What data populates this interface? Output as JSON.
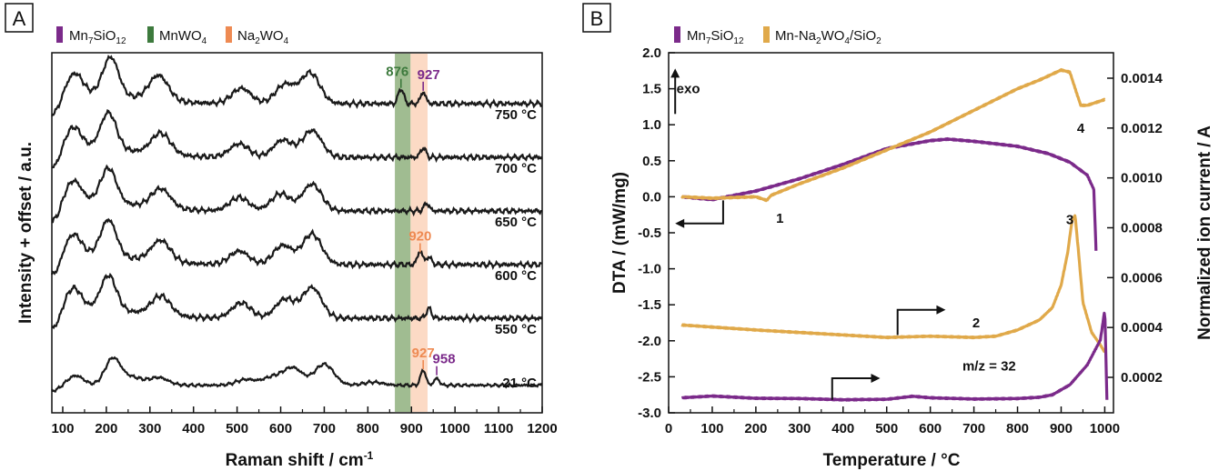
{
  "chart_data": [
    {
      "panel": "A",
      "type": "line",
      "xlabel": "Raman shift / cm⁻¹",
      "ylabel": "Intensity + offset / a.u.",
      "xlim": [
        75,
        1200
      ],
      "xticks": [
        100,
        200,
        300,
        400,
        500,
        600,
        700,
        800,
        900,
        1000,
        1100,
        1200
      ],
      "legend": [
        {
          "label": "Mn7SiO12",
          "color": "#7b2a8a"
        },
        {
          "label": "MnWO4",
          "color": "#3d7a3d"
        },
        {
          "label": "Na2WO4",
          "color": "#ee8a52"
        }
      ],
      "bands": [
        {
          "label": "MnWO4",
          "x0": 862,
          "x1": 898,
          "color": "#8fb07e"
        },
        {
          "label": "Na2WO4",
          "x0": 898,
          "x1": 937,
          "color": "#fbd4bb"
        }
      ],
      "series": [
        {
          "name": "750 °C",
          "offset": 5,
          "peaks": [
            [
              128,
              0.55
            ],
            [
              210,
              1.0
            ],
            [
              320,
              0.65
            ],
            [
              510,
              0.4
            ],
            [
              610,
              0.5
            ],
            [
              668,
              0.8
            ],
            [
              876,
              0.4
            ],
            [
              927,
              0.3
            ]
          ]
        },
        {
          "name": "700 °C",
          "offset": 4,
          "peaks": [
            [
              125,
              0.55
            ],
            [
              205,
              0.95
            ],
            [
              325,
              0.55
            ],
            [
              505,
              0.35
            ],
            [
              605,
              0.45
            ],
            [
              672,
              0.7
            ],
            [
              927,
              0.25
            ]
          ]
        },
        {
          "name": "650 °C",
          "offset": 3,
          "peaks": [
            [
              125,
              0.55
            ],
            [
              205,
              0.9
            ],
            [
              325,
              0.5
            ],
            [
              505,
              0.35
            ],
            [
              600,
              0.45
            ],
            [
              672,
              0.7
            ],
            [
              935,
              0.2
            ]
          ]
        },
        {
          "name": "600 °C",
          "offset": 2,
          "peaks": [
            [
              125,
              0.55
            ],
            [
              205,
              0.95
            ],
            [
              325,
              0.55
            ],
            [
              505,
              0.35
            ],
            [
              605,
              0.5
            ],
            [
              672,
              0.8
            ],
            [
              920,
              0.35
            ],
            [
              940,
              0.2
            ]
          ]
        },
        {
          "name": "550 °C",
          "offset": 1,
          "peaks": [
            [
              125,
              0.55
            ],
            [
              205,
              0.9
            ],
            [
              325,
              0.5
            ],
            [
              510,
              0.4
            ],
            [
              610,
              0.5
            ],
            [
              672,
              0.8
            ],
            [
              940,
              0.25
            ]
          ]
        },
        {
          "name": "21 °C",
          "offset": 0,
          "peaks": [
            [
              130,
              0.25
            ],
            [
              215,
              0.7
            ],
            [
              260,
              0.2
            ],
            [
              320,
              0.2
            ],
            [
              520,
              0.15
            ],
            [
              580,
              0.2
            ],
            [
              628,
              0.45
            ],
            [
              700,
              0.55
            ],
            [
              812,
              0.08
            ],
            [
              927,
              0.4
            ],
            [
              958,
              0.18
            ]
          ]
        }
      ],
      "annotations": [
        {
          "text": "876",
          "x": 876,
          "series": "750 °C",
          "color": "#3d7a3d"
        },
        {
          "text": "927",
          "x": 927,
          "series": "750 °C",
          "color": "#7b2a8a"
        },
        {
          "text": "920",
          "x": 920,
          "series": "600 °C",
          "color": "#ee8a52"
        },
        {
          "text": "927",
          "x": 927,
          "series": "21 °C",
          "color": "#ee8a52"
        },
        {
          "text": "958",
          "x": 958,
          "series": "21 °C",
          "color": "#7b2a8a"
        }
      ]
    },
    {
      "panel": "B",
      "type": "line",
      "xlabel": "Temperature / °C",
      "ylabel": "DTA / (mW/mg)",
      "y2label": "Normalized ion current / A",
      "xlim": [
        0,
        1020
      ],
      "ylim": [
        -3.0,
        2.0
      ],
      "y2lim": [
        0.0001,
        0.00145
      ],
      "xticks": [
        0,
        100,
        200,
        300,
        400,
        500,
        600,
        700,
        800,
        900,
        1000
      ],
      "yticks": [
        "2.0",
        "1.5",
        "1.0",
        "0.5",
        "0.0",
        "-0.5",
        "-1.0",
        "-1.5",
        "-2.0",
        "-2.5",
        "-3.0"
      ],
      "y2ticks": [
        "0.0014",
        "0.0012",
        "0.0010",
        "0.0008",
        "0.0006",
        "0.0004",
        "0.0002"
      ],
      "legend": [
        {
          "label": "Mn7SiO12",
          "color": "#7b2a8a"
        },
        {
          "label": "Mn-Na2WO4/SiO2",
          "color": "#e0a94a"
        }
      ],
      "series": [
        {
          "name": "Mn7SiO12 DTA",
          "axis": "left",
          "color": "#7b2a8a",
          "x": [
            30,
            100,
            200,
            300,
            400,
            500,
            600,
            640,
            700,
            800,
            870,
            920,
            960,
            975,
            980
          ],
          "y": [
            0.0,
            -0.04,
            0.08,
            0.25,
            0.45,
            0.67,
            0.78,
            0.8,
            0.77,
            0.7,
            0.6,
            0.48,
            0.3,
            0.1,
            -0.75
          ]
        },
        {
          "name": "Mn-Na2WO4/SiO2 DTA",
          "axis": "left",
          "color": "#e0a94a",
          "x": [
            30,
            100,
            200,
            225,
            235,
            300,
            400,
            500,
            600,
            700,
            800,
            850,
            900,
            920,
            935,
            945,
            960,
            1000
          ],
          "y": [
            0.0,
            -0.02,
            0.0,
            -0.05,
            0.02,
            0.18,
            0.4,
            0.65,
            0.9,
            1.2,
            1.5,
            1.62,
            1.76,
            1.73,
            1.45,
            1.27,
            1.27,
            1.35
          ]
        },
        {
          "name": "Mn-Na2WO4/SiO2 m/z 32",
          "axis": "right",
          "color": "#e0a94a",
          "x": [
            30,
            200,
            400,
            500,
            600,
            700,
            750,
            800,
            850,
            880,
            900,
            915,
            925,
            932,
            940,
            950,
            970,
            990,
            1000
          ],
          "y": [
            0.00041,
            0.00039,
            0.00037,
            0.00036,
            0.000365,
            0.00036,
            0.000365,
            0.00039,
            0.00043,
            0.00048,
            0.00057,
            0.0007,
            0.00083,
            0.00085,
            0.0007,
            0.0005,
            0.00038,
            0.00033,
            0.0003
          ]
        },
        {
          "name": "Mn7SiO12 m/z 32",
          "axis": "right",
          "color": "#7b2a8a",
          "x": [
            30,
            100,
            200,
            300,
            400,
            500,
            560,
            600,
            700,
            800,
            850,
            880,
            920,
            960,
            990,
            1000,
            1005
          ],
          "y": [
            0.000118,
            0.000125,
            0.000116,
            0.000115,
            0.00011,
            0.000112,
            0.000124,
            0.000118,
            0.000113,
            0.000115,
            0.00012,
            0.00013,
            0.00017,
            0.00025,
            0.00035,
            0.00047,
            0.00011
          ]
        }
      ],
      "annotations": [
        {
          "text": "exo",
          "x": 45,
          "y": 1.5
        },
        {
          "text": "1",
          "x": 255,
          "y": -0.3
        },
        {
          "text": "2",
          "x": 705,
          "y": -1.75
        },
        {
          "text": "3",
          "x": 920,
          "y": -0.32
        },
        {
          "text": "4",
          "x": 945,
          "y": 0.95
        },
        {
          "text": "m/z = 32",
          "x": 735,
          "y": -2.35
        }
      ]
    }
  ],
  "panel_labels": {
    "a": "A",
    "b": "B"
  },
  "legend_a": {
    "mn7": {
      "base": "Mn",
      "sub1": "7",
      "mid": "SiO",
      "sub2": "12"
    },
    "mnwo4": {
      "base": "MnWO",
      "sub1": "4"
    },
    "na2wo4": {
      "base": "Na",
      "sub1": "2",
      "mid": "WO",
      "sub2": "4"
    }
  },
  "legend_b": {
    "mn7": {
      "base": "Mn",
      "sub1": "7",
      "mid": "SiO",
      "sub2": "12"
    },
    "mnna": {
      "base": "Mn-Na",
      "sub1": "2",
      "mid": "WO",
      "sub2": "4",
      "tail": "/SiO",
      "sub3": "2"
    }
  },
  "xlabel_a": {
    "base": "Raman shift / cm",
    "sup": "-1"
  },
  "colors": {
    "purple": "#7b2a8a",
    "green": "#3d7a3d",
    "orange": "#ee8a52",
    "gold": "#e0a94a",
    "line": "#1a1a1a"
  }
}
